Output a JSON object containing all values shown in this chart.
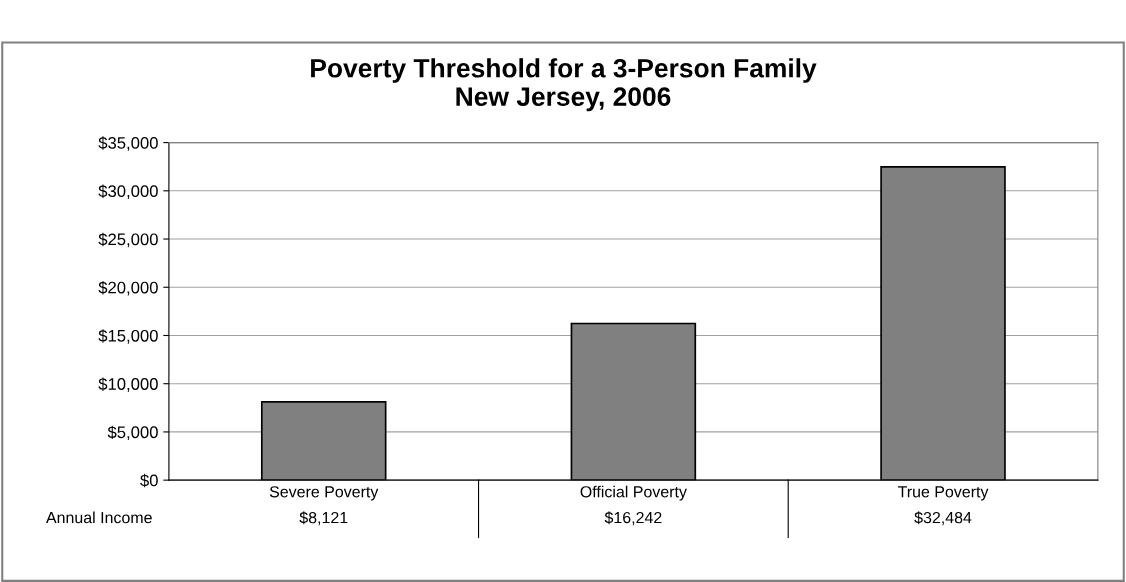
{
  "chart_data": {
    "type": "bar",
    "title": "Poverty Threshold for a 3-Person Family\nNew Jersey, 2006",
    "categories": [
      "Severe Poverty",
      "Official Poverty",
      "True Poverty"
    ],
    "values": [
      8121,
      16242,
      32484
    ],
    "value_labels": [
      "$8,121",
      "$16,242",
      "$32,484"
    ],
    "color": "#808080",
    "annotations": [
      "Annual Income"
    ],
    "ylim": [
      0,
      35000
    ],
    "yticks": [
      {
        "value": 0,
        "label": "$0"
      },
      {
        "value": 5000,
        "label": "$5,000"
      },
      {
        "value": 10000,
        "label": "$10,000"
      },
      {
        "value": 15000,
        "label": "$15,000"
      },
      {
        "value": 20000,
        "label": "$20,000"
      },
      {
        "value": 25000,
        "label": "$25,000"
      },
      {
        "value": 30000,
        "label": "$30,000"
      },
      {
        "value": 35000,
        "label": "$35,000"
      }
    ],
    "grid": "y",
    "legend": false
  }
}
